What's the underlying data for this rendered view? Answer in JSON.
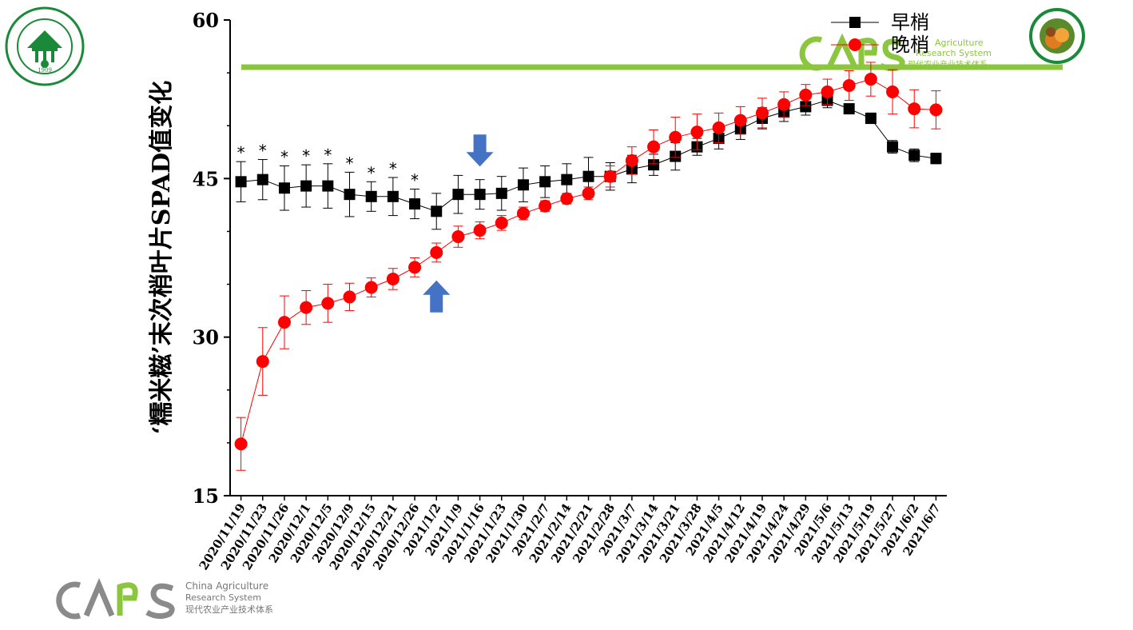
{
  "chart_data": {
    "type": "line",
    "ylabel": "‘糯米糍’末次梢叶片SPAD值变化",
    "ylim": [
      15,
      60
    ],
    "yticks": [
      15,
      30,
      45,
      60
    ],
    "categories": [
      "2020/11/19",
      "2020/11/23",
      "2020/11/26",
      "2020/12/1",
      "2020/12/5",
      "2020/12/9",
      "2020/12/15",
      "2020/12/21",
      "2020/12/26",
      "2021/1/2",
      "2021/1/9",
      "2021/1/16",
      "2021/1/23",
      "2021/1/30",
      "2021/2/7",
      "2021/2/14",
      "2021/2/21",
      "2021/2/28",
      "2021/3/7",
      "2021/3/14",
      "2021/3/21",
      "2021/3/28",
      "2021/4/5",
      "2021/4/12",
      "2021/4/19",
      "2021/4/24",
      "2021/4/29",
      "2021/5/6",
      "2021/5/13",
      "2021/5/19",
      "2021/5/27",
      "2021/6/2",
      "2021/6/7"
    ],
    "series": [
      {
        "name": "早梢",
        "color": "#000000",
        "marker": "square",
        "values": [
          44.7,
          44.9,
          44.1,
          44.3,
          44.3,
          43.5,
          43.3,
          43.3,
          42.6,
          41.9,
          43.5,
          43.5,
          43.6,
          44.4,
          44.7,
          44.9,
          45.2,
          45.2,
          45.9,
          46.3,
          47.1,
          48.0,
          48.8,
          49.7,
          50.7,
          51.3,
          51.8,
          52.4,
          51.6,
          50.7,
          48.0,
          47.2,
          46.9
        ],
        "errors": [
          1.9,
          1.9,
          2.1,
          2.0,
          2.1,
          2.1,
          1.4,
          1.8,
          1.4,
          1.7,
          1.8,
          1.4,
          1.6,
          1.6,
          1.5,
          1.5,
          1.8,
          1.3,
          1.3,
          1.0,
          1.3,
          0.8,
          1.0,
          1.0,
          1.0,
          0.9,
          0.8,
          0.7,
          0.4,
          0.5,
          0.6,
          0.6,
          0.5
        ]
      },
      {
        "name": "晚梢",
        "color": "#ff0000",
        "marker": "circle",
        "values": [
          19.9,
          27.7,
          31.4,
          32.8,
          33.2,
          33.8,
          34.7,
          35.5,
          36.6,
          38.0,
          39.5,
          40.1,
          40.8,
          41.7,
          42.4,
          43.1,
          43.6,
          45.2,
          46.7,
          48.0,
          48.9,
          49.4,
          49.8,
          50.5,
          51.2,
          52.0,
          52.9,
          53.2,
          53.8,
          54.4,
          53.2,
          51.6,
          51.5
        ],
        "errors": [
          2.5,
          3.2,
          2.5,
          1.6,
          1.8,
          1.3,
          0.9,
          1.0,
          0.9,
          0.9,
          1.0,
          0.8,
          0.7,
          0.6,
          0.5,
          0.5,
          0.6,
          1.0,
          1.3,
          1.6,
          1.9,
          1.7,
          1.4,
          1.3,
          1.4,
          1.2,
          1.0,
          1.2,
          1.4,
          1.6,
          2.1,
          1.8,
          1.8
        ]
      }
    ],
    "annotations": {
      "asterisk": "*",
      "asterisk_indices": [
        0,
        1,
        2,
        3,
        4,
        5,
        6,
        7,
        8
      ],
      "arrows": [
        {
          "direction": "down",
          "color": "#4472c4",
          "category_index": 11,
          "near_value": 47.5
        },
        {
          "direction": "up",
          "color": "#4472c4",
          "category_index": 9,
          "near_value": 34.0
        }
      ]
    },
    "legend": "top-right",
    "grid": false
  },
  "logos": {
    "cars_name_en_line1": "China Agriculture",
    "cars_name_en_line2": "Research System",
    "cars_name_cn": "现代农业产业技术体系",
    "cars_top_en_line1": "Agriculture",
    "cars_top_en_line2": "Research System",
    "cars_top_cn": "现代农业产业技术体系",
    "seal_year": "1909",
    "accent_green": "#8cc63f",
    "seal_green": "#1a8a3a"
  }
}
